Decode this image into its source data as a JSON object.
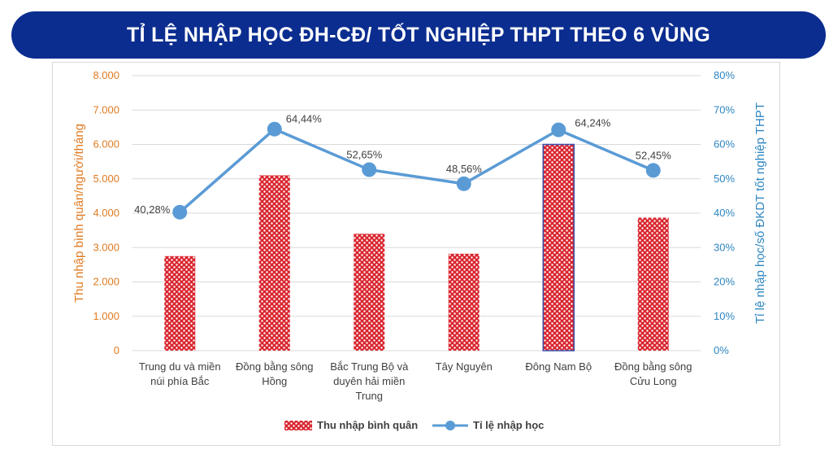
{
  "title": "TỈ LỆ NHẬP HỌC ĐH-CĐ/ TỐT NGHIỆP THPT THEO 6 VÙNG",
  "chart_data": {
    "type": "bar",
    "categories": [
      [
        "Trung du và miền",
        "núi phía Bắc"
      ],
      [
        "Đồng bằng sông",
        "Hồng"
      ],
      [
        "Bắc Trung Bộ và",
        "duyên hải miền",
        "Trung"
      ],
      [
        "Tây Nguyên"
      ],
      [
        "Đông Nam Bộ"
      ],
      [
        "Đồng bằng sông",
        "Cửu Long"
      ]
    ],
    "series": [
      {
        "name": "Thu nhập bình quân",
        "type": "bar",
        "axis": "left",
        "values": [
          2750,
          5100,
          3400,
          2820,
          6000,
          3870
        ],
        "color": "#d9252f"
      },
      {
        "name": "Tỉ lệ nhập học",
        "type": "line",
        "axis": "right",
        "values": [
          40.28,
          64.44,
          52.65,
          48.56,
          64.24,
          52.45
        ],
        "labels": [
          "40,28%",
          "64,44%",
          "52,65%",
          "48,56%",
          "64,24%",
          "52,45%"
        ],
        "color": "#5b9bd5"
      }
    ],
    "ylabel_left": "Thu nhập bình quân/người/tháng",
    "ylabel_right": "Tỉ lệ nhập học/số ĐKDT tốt nghiệp THPT",
    "ylim_left": [
      0,
      8000
    ],
    "ylim_right": [
      0,
      80
    ],
    "yticks_left": [
      "0",
      "1.000",
      "2.000",
      "3.000",
      "4.000",
      "5.000",
      "6.000",
      "7.000",
      "8.000"
    ],
    "yticks_right": [
      "0%",
      "10%",
      "20%",
      "30%",
      "40%",
      "50%",
      "60%",
      "70%",
      "80%"
    ],
    "grid": true,
    "legend_position": "bottom"
  },
  "colors": {
    "banner": "#0b2d8f",
    "left_axis": "#e07b22",
    "right_axis": "#2e86c1",
    "grid": "#d9d9d9"
  }
}
